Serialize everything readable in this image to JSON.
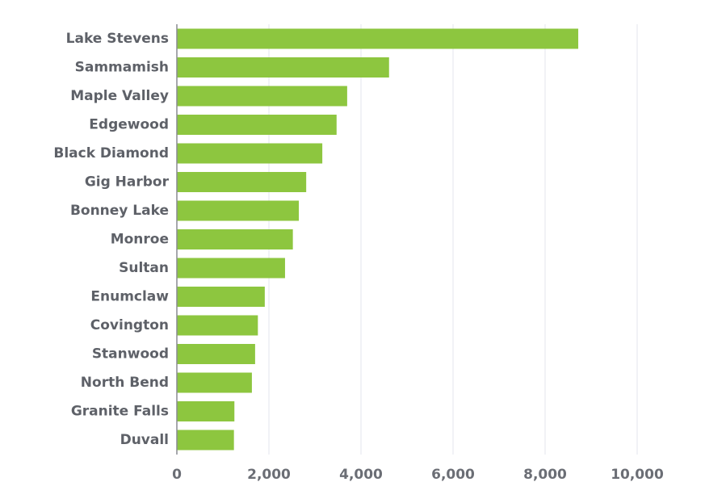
{
  "chart_data": {
    "type": "bar",
    "orientation": "horizontal",
    "title": "",
    "xlabel": "",
    "ylabel": "",
    "categories": [
      "Lake Stevens",
      "Sammamish",
      "Maple Valley",
      "Edgewood",
      "Black Diamond",
      "Gig Harbor",
      "Bonney Lake",
      "Monroe",
      "Sultan",
      "Enumclaw",
      "Covington",
      "Stanwood",
      "North Bend",
      "Granite Falls",
      "Duvall"
    ],
    "values": [
      8720,
      4610,
      3700,
      3470,
      3160,
      2810,
      2650,
      2520,
      2350,
      1910,
      1760,
      1700,
      1630,
      1250,
      1240
    ],
    "xlim": [
      0,
      10000
    ],
    "x_ticks": [
      0,
      2000,
      4000,
      6000,
      8000,
      10000
    ],
    "x_tick_labels": [
      "0",
      "2,000",
      "4,000",
      "6,000",
      "8,000",
      "10,000"
    ],
    "grid": "vertical",
    "legend": "none",
    "bar_color": "#8dc63f"
  }
}
